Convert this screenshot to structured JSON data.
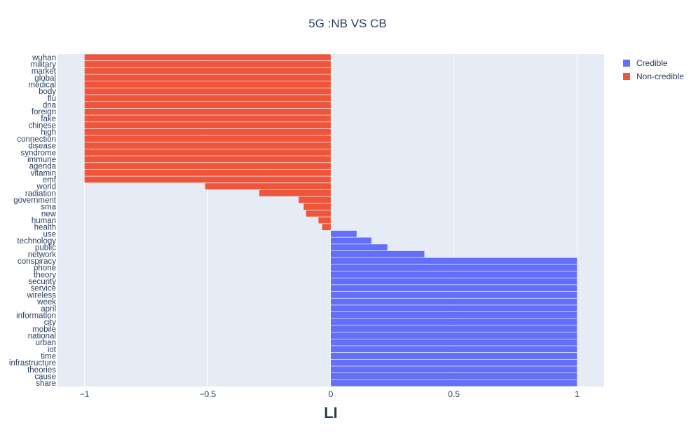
{
  "chart_data": {
    "type": "bar",
    "orientation": "horizontal",
    "title": "5G :NB VS CB",
    "xlabel": "LI",
    "ylabel": "",
    "xlim": [
      -1.11,
      1.11
    ],
    "xticks": [
      -1,
      -0.5,
      0,
      0.5,
      1
    ],
    "xtick_labels": [
      "−1",
      "−0.5",
      "0",
      "0.5",
      "1"
    ],
    "grid": true,
    "legend_position": "top-right",
    "categories": [
      "wuhan",
      "military",
      "market",
      "global",
      "medical",
      "body",
      "flu",
      "dna",
      "foreign",
      "fake",
      "chinese",
      "high",
      "connection",
      "disease",
      "syndrome",
      "immune",
      "agenda",
      "vitamin",
      "emf",
      "world",
      "radiation",
      "government",
      "sma",
      "new",
      "human",
      "health",
      "use",
      "technology",
      "public",
      "network",
      "conspiracy",
      "phone",
      "theory",
      "security",
      "service",
      "wireless",
      "week",
      "april",
      "information",
      "city",
      "mobile",
      "national",
      "urban",
      "iot",
      "time",
      "infrastructure",
      "theories",
      "cause",
      "share"
    ],
    "series": [
      {
        "name": "Non-credible",
        "color": "#EF553B",
        "bars": [
          {
            "label": "wuhan",
            "value": -1
          },
          {
            "label": "military",
            "value": -1
          },
          {
            "label": "market",
            "value": -1
          },
          {
            "label": "global",
            "value": -1
          },
          {
            "label": "medical",
            "value": -1
          },
          {
            "label": "body",
            "value": -1
          },
          {
            "label": "flu",
            "value": -1
          },
          {
            "label": "dna",
            "value": -1
          },
          {
            "label": "foreign",
            "value": -1
          },
          {
            "label": "fake",
            "value": -1
          },
          {
            "label": "chinese",
            "value": -1
          },
          {
            "label": "high",
            "value": -1
          },
          {
            "label": "connection",
            "value": -1
          },
          {
            "label": "disease",
            "value": -1
          },
          {
            "label": "syndrome",
            "value": -1
          },
          {
            "label": "immune",
            "value": -1
          },
          {
            "label": "agenda",
            "value": -1
          },
          {
            "label": "vitamin",
            "value": -1
          },
          {
            "label": "emf",
            "value": -1
          },
          {
            "label": "world",
            "value": -0.51
          },
          {
            "label": "radiation",
            "value": -0.29
          },
          {
            "label": "government",
            "value": -0.13
          },
          {
            "label": "sma",
            "value": -0.11
          },
          {
            "label": "new",
            "value": -0.1
          },
          {
            "label": "human",
            "value": -0.05
          },
          {
            "label": "health",
            "value": -0.035
          }
        ]
      },
      {
        "name": "Credible",
        "color": "#636EFA",
        "bars": [
          {
            "label": "use",
            "value": 0.105
          },
          {
            "label": "technology",
            "value": 0.165
          },
          {
            "label": "public",
            "value": 0.23
          },
          {
            "label": "network",
            "value": 0.38
          },
          {
            "label": "conspiracy",
            "value": 1
          },
          {
            "label": "phone",
            "value": 1
          },
          {
            "label": "theory",
            "value": 1
          },
          {
            "label": "security",
            "value": 1
          },
          {
            "label": "service",
            "value": 1
          },
          {
            "label": "wireless",
            "value": 1
          },
          {
            "label": "week",
            "value": 1
          },
          {
            "label": "april",
            "value": 1
          },
          {
            "label": "information",
            "value": 1
          },
          {
            "label": "city",
            "value": 1
          },
          {
            "label": "mobile",
            "value": 1
          },
          {
            "label": "national",
            "value": 1
          },
          {
            "label": "urban",
            "value": 1
          },
          {
            "label": "iot",
            "value": 1
          },
          {
            "label": "time",
            "value": 1
          },
          {
            "label": "infrastructure",
            "value": 1
          },
          {
            "label": "theories",
            "value": 1
          },
          {
            "label": "cause",
            "value": 1
          },
          {
            "label": "share",
            "value": 1
          }
        ]
      }
    ],
    "legend": [
      {
        "name": "Credible",
        "color": "#636EFA"
      },
      {
        "name": "Non-credible",
        "color": "#EF553B"
      }
    ]
  }
}
